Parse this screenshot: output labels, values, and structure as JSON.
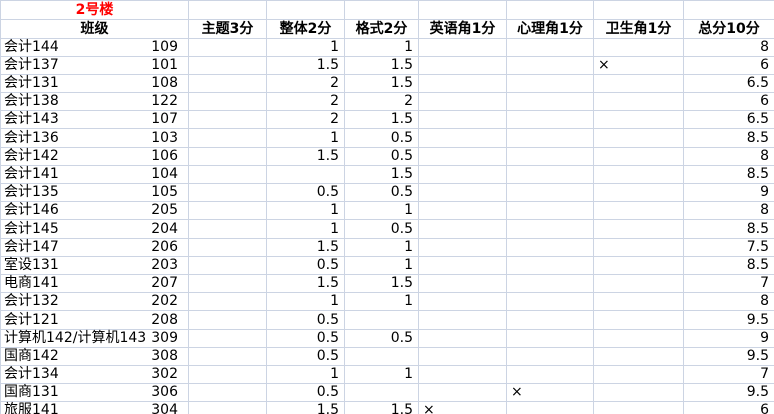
{
  "building": {
    "label": "2号楼"
  },
  "columns": {
    "class_header": "班级",
    "theme": "主题3分",
    "overall": "整体2分",
    "format": "格式2分",
    "english": "英语角1分",
    "psych": "心理角1分",
    "hygiene": "卫生角1分",
    "total": "总分10分"
  },
  "rows": [
    {
      "class": "会计144",
      "room": "109",
      "theme": "",
      "overall": "1",
      "format": "1",
      "english": "",
      "psych": "",
      "hygiene": "",
      "total": "8"
    },
    {
      "class": "会计137",
      "room": "101",
      "theme": "",
      "overall": "1.5",
      "format": "1.5",
      "english": "",
      "psych": "",
      "hygiene": "×",
      "total": "6"
    },
    {
      "class": "会计131",
      "room": "108",
      "theme": "",
      "overall": "2",
      "format": "1.5",
      "english": "",
      "psych": "",
      "hygiene": "",
      "total": "6.5"
    },
    {
      "class": "会计138",
      "room": "122",
      "theme": "",
      "overall": "2",
      "format": "2",
      "english": "",
      "psych": "",
      "hygiene": "",
      "total": "6"
    },
    {
      "class": "会计143",
      "room": "107",
      "theme": "",
      "overall": "2",
      "format": "1.5",
      "english": "",
      "psych": "",
      "hygiene": "",
      "total": "6.5"
    },
    {
      "class": "会计136",
      "room": "103",
      "theme": "",
      "overall": "1",
      "format": "0.5",
      "english": "",
      "psych": "",
      "hygiene": "",
      "total": "8.5"
    },
    {
      "class": "会计142",
      "room": "106",
      "theme": "",
      "overall": "1.5",
      "format": "0.5",
      "english": "",
      "psych": "",
      "hygiene": "",
      "total": "8"
    },
    {
      "class": "会计141",
      "room": "104",
      "theme": "",
      "overall": "",
      "format": "1.5",
      "english": "",
      "psych": "",
      "hygiene": "",
      "total": "8.5"
    },
    {
      "class": "会计135",
      "room": "105",
      "theme": "",
      "overall": "0.5",
      "format": "0.5",
      "english": "",
      "psych": "",
      "hygiene": "",
      "total": "9"
    },
    {
      "class": "会计146",
      "room": "205",
      "theme": "",
      "overall": "1",
      "format": "1",
      "english": "",
      "psych": "",
      "hygiene": "",
      "total": "8"
    },
    {
      "class": "会计145",
      "room": "204",
      "theme": "",
      "overall": "1",
      "format": "0.5",
      "english": "",
      "psych": "",
      "hygiene": "",
      "total": "8.5"
    },
    {
      "class": "会计147",
      "room": "206",
      "theme": "",
      "overall": "1.5",
      "format": "1",
      "english": "",
      "psych": "",
      "hygiene": "",
      "total": "7.5"
    },
    {
      "class": "室设131",
      "room": "203",
      "theme": "",
      "overall": "0.5",
      "format": "1",
      "english": "",
      "psych": "",
      "hygiene": "",
      "total": "8.5"
    },
    {
      "class": "电商141",
      "room": "207",
      "theme": "",
      "overall": "1.5",
      "format": "1.5",
      "english": "",
      "psych": "",
      "hygiene": "",
      "total": "7"
    },
    {
      "class": "会计132",
      "room": "202",
      "theme": "",
      "overall": "1",
      "format": "1",
      "english": "",
      "psych": "",
      "hygiene": "",
      "total": "8"
    },
    {
      "class": "会计121",
      "room": "208",
      "theme": "",
      "overall": "0.5",
      "format": "",
      "english": "",
      "psych": "",
      "hygiene": "",
      "total": "9.5"
    },
    {
      "class": "计算机142/计算机143",
      "room": "309",
      "theme": "",
      "overall": "0.5",
      "format": "0.5",
      "english": "",
      "psych": "",
      "hygiene": "",
      "total": "9"
    },
    {
      "class": "国商142",
      "room": "308",
      "theme": "",
      "overall": "0.5",
      "format": "",
      "english": "",
      "psych": "",
      "hygiene": "",
      "total": "9.5"
    },
    {
      "class": "会计134",
      "room": "302",
      "theme": "",
      "overall": "1",
      "format": "1",
      "english": "",
      "psych": "",
      "hygiene": "",
      "total": "7"
    },
    {
      "class": "国商131",
      "room": "306",
      "theme": "",
      "overall": "0.5",
      "format": "",
      "english": "",
      "psych": "×",
      "hygiene": "",
      "total": "9.5"
    },
    {
      "class": "旅服141",
      "room": "304",
      "theme": "",
      "overall": "1.5",
      "format": "1.5",
      "english": "×",
      "psych": "",
      "hygiene": "",
      "total": "6"
    }
  ],
  "colors": {
    "gridline": "#ccd4e3",
    "building_red": "#ff0000",
    "text": "#000000",
    "background": "#ffffff"
  }
}
